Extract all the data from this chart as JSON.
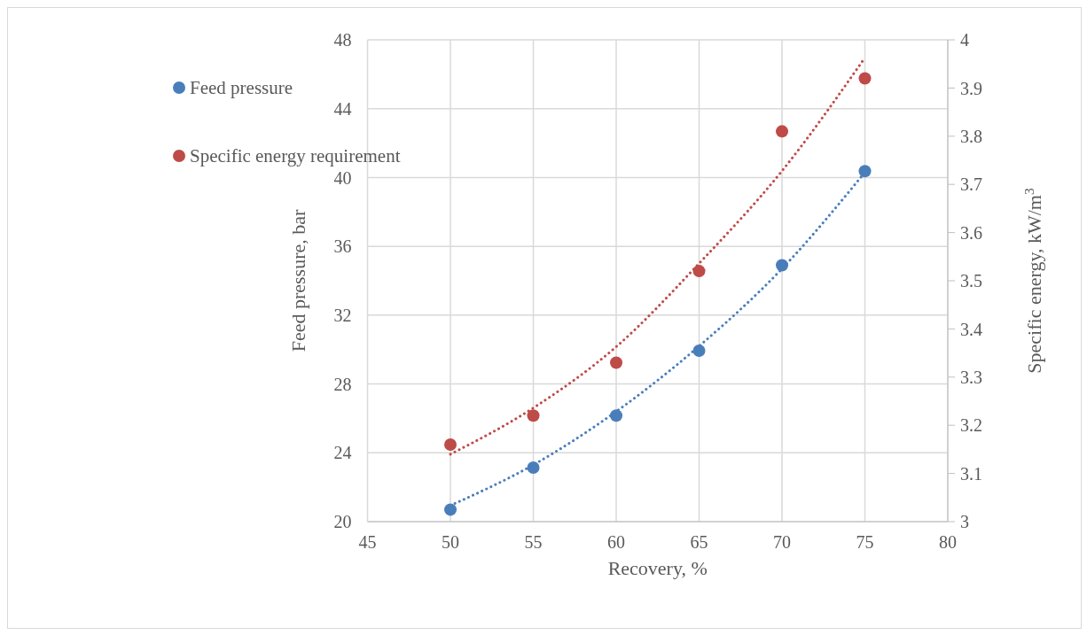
{
  "chart_data": {
    "type": "scatter",
    "xlabel": "Recovery, %",
    "ylabel": "Feed pressure, bar",
    "y2label": "Specific energy, kW/m$^{3}$",
    "xlim": [
      45,
      80
    ],
    "xticks": [
      45,
      50,
      55,
      60,
      65,
      70,
      75,
      80
    ],
    "ylim": [
      20,
      48
    ],
    "yticks": [
      20,
      24,
      28,
      32,
      36,
      40,
      44,
      48
    ],
    "y2lim": [
      3,
      4
    ],
    "y2ticks": [
      3,
      3.1,
      3.2,
      3.3,
      3.4,
      3.5,
      3.6,
      3.7,
      3.8,
      3.9,
      4
    ],
    "grid": true,
    "legend": "top left",
    "marker": "circle",
    "x": [
      50,
      55,
      60,
      65,
      70,
      75
    ],
    "series": [
      {
        "name": "Feed pressure",
        "color": "#4a7ebb",
        "values": [
          20.7,
          23.14,
          26.16,
          29.93,
          34.9,
          40.37
        ]
      },
      {
        "name": "Specific energy requirement",
        "color": "#be4b48",
        "axis": "y2",
        "values": [
          3.16,
          3.22,
          3.33,
          3.52,
          3.81,
          3.92
        ]
      },
      {
        "type": "line",
        "color": "#4a7ebb",
        "line_style": "dotted",
        "marker": "none",
        "x": [
          50,
          55,
          60,
          65,
          70,
          75
        ],
        "values": [
          20.94,
          23.3,
          26.4,
          30.2,
          34.7,
          40.3
        ]
      },
      {
        "type": "line",
        "color": "#be4b48",
        "line_style": "dotted",
        "marker": "none",
        "axis": "y2",
        "x": [
          50,
          55,
          60,
          65,
          70,
          74.9
        ],
        "values": [
          3.14,
          3.236,
          3.363,
          3.536,
          3.728,
          3.958
        ]
      }
    ]
  }
}
